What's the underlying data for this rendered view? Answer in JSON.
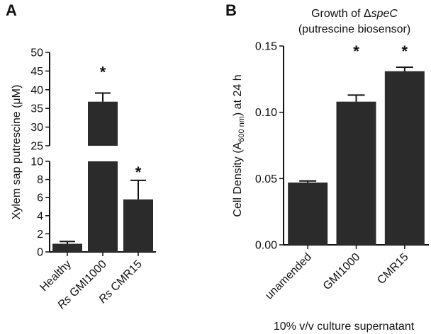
{
  "chart_data": [
    {
      "panel_label": "A",
      "type": "bar",
      "ylabel": "Xylem sap putrescine (μM)",
      "categories": [
        {
          "prefix": "",
          "name": "Healthy"
        },
        {
          "prefix": "Rs",
          "name": " GMI1000"
        },
        {
          "prefix": "Rs",
          "name": " CMR15"
        }
      ],
      "values": [
        0.9,
        36.8,
        5.8
      ],
      "errors": [
        0.25,
        2.3,
        2.1
      ],
      "significance": [
        "",
        "*",
        "*"
      ],
      "axis_break": true,
      "ylim_lower": [
        0,
        10
      ],
      "ylim_upper": [
        25,
        50
      ],
      "yticks_lower": [
        "0",
        "2",
        "4",
        "6",
        "8",
        "10"
      ],
      "yticks_upper": [
        "25",
        "30",
        "35",
        "40",
        "45",
        "50"
      ],
      "bar_color": "#2b2b2b"
    },
    {
      "panel_label": "B",
      "type": "bar",
      "title_line1_prefix": "Growth of ",
      "title_line1_delta": "Δ",
      "title_line1_gene": "speC",
      "title_line2": "(putrescine biosensor)",
      "ylabel_main": "Cell Density (A",
      "ylabel_sub": "600 nm",
      "ylabel_tail": ") at 24 h",
      "xlabel": "10% v/v culture supernatant",
      "categories": [
        "unamended",
        "GMI1000",
        "CMR15"
      ],
      "values": [
        0.047,
        0.108,
        0.131
      ],
      "errors": [
        0.0012,
        0.005,
        0.003
      ],
      "significance": [
        "",
        "*",
        "*"
      ],
      "ylim": [
        0,
        0.15
      ],
      "yticks": [
        "0.00",
        "0.05",
        "0.10",
        "0.15"
      ],
      "bar_color": "#2b2b2b"
    }
  ]
}
